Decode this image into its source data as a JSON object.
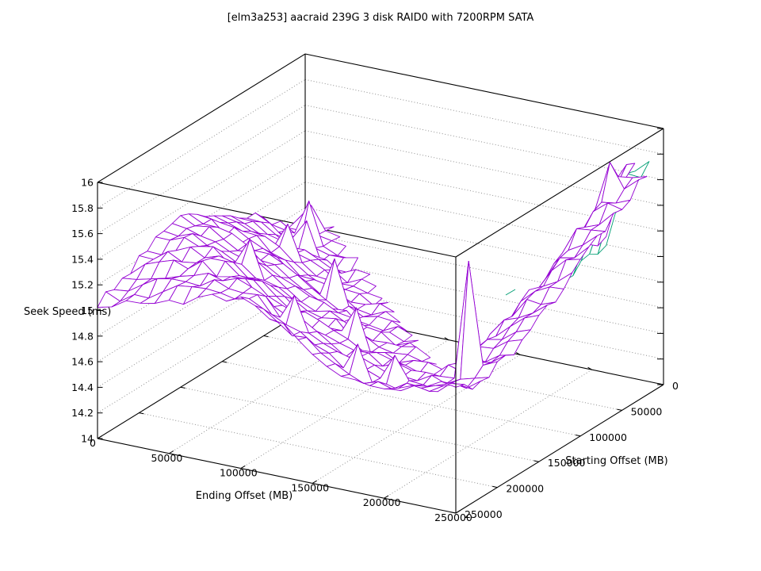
{
  "page": {
    "background": "#ffffff",
    "foreground": "#000000",
    "grid_color": "#909090"
  },
  "chart_data": {
    "type": "surface3d",
    "title": "[elm3a253] aacraid 239G 3 disk RAID0 with 7200RPM SATA",
    "xlabel": "Ending Offset (MB)",
    "ylabel": "Starting Offset (MB)",
    "zlabel": "Seek Speed (ms)",
    "x_range": [
      0,
      250000
    ],
    "y_range": [
      0,
      250000
    ],
    "z_range": [
      14,
      16
    ],
    "x_ticks": [
      "0",
      "50000",
      "100000",
      "150000",
      "200000",
      "250000"
    ],
    "y_ticks": [
      "0",
      "50000",
      "100000",
      "150000",
      "200000",
      "250000"
    ],
    "z_ticks": [
      "14",
      "14.2",
      "14.4",
      "14.6",
      "14.8",
      "15",
      "15.2",
      "15.4",
      "15.6",
      "15.8",
      "16"
    ],
    "grid_on": true,
    "legend": "none",
    "series": [
      {
        "name": "seek-speed-surface",
        "color": "#9400D3"
      },
      {
        "name": "seek-speed-surface-secondary",
        "color": "#009E73"
      }
    ],
    "grid_step_mb": 25000,
    "z_grid_rows_are_starting_offset": true,
    "z_grid": [
      [
        14.67,
        null,
        null,
        null,
        null,
        null,
        null,
        null,
        null,
        15.7,
        15.8
      ],
      [
        14.78,
        14.67,
        null,
        null,
        null,
        null,
        null,
        null,
        null,
        15.6,
        15.7
      ],
      [
        14.91,
        14.78,
        14.67,
        null,
        null,
        null,
        null,
        null,
        null,
        15.48,
        15.6
      ],
      [
        15.05,
        14.9,
        14.77,
        14.67,
        null,
        null,
        null,
        null,
        null,
        15.36,
        15.48
      ],
      [
        15.17,
        15.03,
        14.9,
        14.77,
        14.67,
        null,
        null,
        null,
        null,
        15.23,
        15.36
      ],
      [
        15.26,
        15.16,
        15.01,
        14.88,
        14.76,
        14.68,
        null,
        null,
        null,
        15.11,
        15.23
      ],
      [
        15.32,
        15.25,
        15.14,
        14.98,
        14.86,
        14.76,
        14.7,
        null,
        null,
        14.99,
        15.11
      ],
      [
        15.28,
        15.32,
        15.23,
        15.11,
        14.95,
        14.85,
        14.77,
        14.72,
        null,
        14.88,
        15.0
      ],
      [
        15.2,
        15.28,
        15.32,
        15.22,
        15.08,
        14.93,
        14.83,
        14.77,
        14.75,
        14.82,
        14.94
      ],
      [
        15.11,
        15.2,
        15.28,
        15.32,
        15.21,
        15.06,
        14.9,
        14.8,
        14.78,
        14.8,
        14.88
      ],
      [
        15.04,
        15.11,
        15.2,
        15.28,
        15.32,
        15.19,
        15.02,
        14.9,
        14.86,
        14.9,
        15.0
      ]
    ],
    "detail": {
      "mesh_divisions": 25,
      "noise_amp": 0.045,
      "spikes": [
        [
          0.08,
          0.12,
          0.28
        ],
        [
          0.04,
          0.04,
          0.22
        ],
        [
          0.12,
          0.2,
          0.2
        ],
        [
          0.92,
          0.8,
          0.85
        ],
        [
          0.36,
          0.48,
          0.28
        ],
        [
          0.56,
          0.72,
          0.26
        ],
        [
          0.24,
          0.68,
          0.24
        ],
        [
          0.48,
          0.88,
          0.22
        ],
        [
          0.68,
          0.92,
          0.18
        ],
        [
          0.92,
          0.12,
          0.18
        ],
        [
          0.16,
          0.36,
          0.22
        ],
        [
          0.76,
          0.88,
          0.2
        ]
      ],
      "domain": {
        "backward_margin": 0.045,
        "band_min_u": 0.855,
        "purple_tip_clip": {
          "u_min": 0.93,
          "v_max": 0.08
        },
        "green_v_max": 0.22,
        "green_u_max": 0.97
      },
      "green_loose_segment": [
        638,
        372,
        650,
        365
      ]
    }
  }
}
